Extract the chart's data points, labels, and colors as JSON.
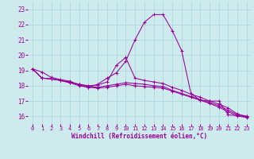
{
  "xlabel": "Windchill (Refroidissement éolien,°C)",
  "xlim": [
    -0.5,
    23.5
  ],
  "ylim": [
    15.5,
    23.5
  ],
  "xticks": [
    0,
    1,
    2,
    3,
    4,
    5,
    6,
    7,
    8,
    9,
    10,
    11,
    12,
    13,
    14,
    15,
    16,
    17,
    18,
    19,
    20,
    21,
    22,
    23
  ],
  "yticks": [
    16,
    17,
    18,
    19,
    20,
    21,
    22,
    23
  ],
  "bg_color": "#cdeaed",
  "line_color": "#990099",
  "grid_color": "#a8d4d8",
  "lines": [
    {
      "x": [
        0,
        1,
        2,
        3,
        4,
        5,
        6,
        7,
        8,
        9,
        10,
        11,
        12,
        13,
        14,
        15,
        16,
        17,
        18,
        19,
        20,
        21,
        22,
        23
      ],
      "y": [
        19.1,
        18.9,
        18.55,
        18.4,
        18.3,
        18.05,
        17.9,
        18.1,
        18.5,
        18.85,
        19.6,
        21.0,
        22.15,
        22.65,
        22.65,
        21.6,
        20.3,
        17.5,
        17.05,
        17.0,
        17.0,
        16.1,
        16.05,
        15.95
      ]
    },
    {
      "x": [
        0,
        1,
        2,
        3,
        4,
        5,
        6,
        7,
        8,
        9,
        10,
        11,
        12,
        13,
        14,
        15,
        16,
        17,
        18,
        19,
        20,
        21,
        22,
        23
      ],
      "y": [
        19.1,
        18.5,
        18.45,
        18.35,
        18.25,
        18.1,
        18.0,
        18.05,
        18.25,
        19.35,
        19.85,
        18.5,
        18.35,
        18.25,
        18.15,
        17.9,
        17.7,
        17.45,
        17.25,
        17.0,
        16.8,
        16.55,
        16.15,
        16.0
      ]
    },
    {
      "x": [
        0,
        1,
        2,
        3,
        4,
        5,
        6,
        7,
        8,
        9,
        10,
        11,
        12,
        13,
        14,
        15,
        16,
        17,
        18,
        19,
        20,
        21,
        22,
        23
      ],
      "y": [
        19.1,
        18.5,
        18.45,
        18.35,
        18.2,
        18.1,
        17.95,
        17.9,
        18.0,
        18.1,
        18.2,
        18.15,
        18.1,
        18.0,
        17.95,
        17.7,
        17.5,
        17.3,
        17.1,
        16.9,
        16.7,
        16.4,
        16.1,
        16.0
      ]
    },
    {
      "x": [
        0,
        1,
        2,
        3,
        4,
        5,
        6,
        7,
        8,
        9,
        10,
        11,
        12,
        13,
        14,
        15,
        16,
        17,
        18,
        19,
        20,
        21,
        22,
        23
      ],
      "y": [
        19.1,
        18.5,
        18.45,
        18.35,
        18.2,
        18.0,
        17.9,
        17.85,
        17.9,
        18.0,
        18.1,
        18.0,
        17.95,
        17.9,
        17.85,
        17.65,
        17.45,
        17.25,
        17.05,
        16.85,
        16.6,
        16.3,
        16.02,
        15.93
      ]
    }
  ]
}
